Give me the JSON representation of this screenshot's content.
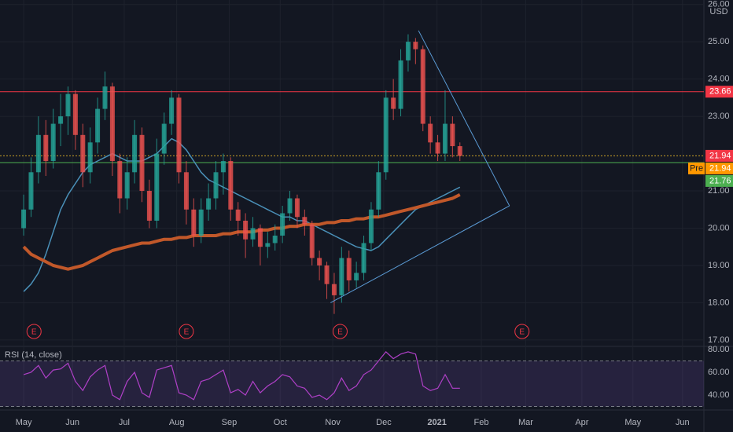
{
  "chart_data": {
    "type": "candlestick",
    "currency": "USD",
    "up_color": "#26a69a",
    "down_color": "#ef5350",
    "xlim": [
      -3.2,
      92
    ],
    "xticks": [
      {
        "value": 0,
        "label": "May"
      },
      {
        "value": 6.6,
        "label": "Jun"
      },
      {
        "value": 13.6,
        "label": "Jul"
      },
      {
        "value": 20.7,
        "label": "Aug"
      },
      {
        "value": 27.8,
        "label": "Sep"
      },
      {
        "value": 34.7,
        "label": "Oct"
      },
      {
        "value": 41.8,
        "label": "Nov"
      },
      {
        "value": 48.7,
        "label": "Dec"
      },
      {
        "value": 55.9,
        "label": "2021"
      },
      {
        "value": 61.9,
        "label": "Feb"
      },
      {
        "value": 67.9,
        "label": "Mar"
      },
      {
        "value": 75.5,
        "label": "Apr"
      },
      {
        "value": 82.4,
        "label": "May"
      },
      {
        "value": 89.1,
        "label": "Jun"
      }
    ],
    "ylim": [
      16.85,
      26.12
    ],
    "yticks": [
      {
        "value": 17,
        "label": "17.00"
      },
      {
        "value": 18,
        "label": "18.00"
      },
      {
        "value": 19,
        "label": "19.00"
      },
      {
        "value": 20,
        "label": "20.00"
      },
      {
        "value": 21,
        "label": "21.00"
      },
      {
        "value": 23,
        "label": "23.00"
      },
      {
        "value": 24,
        "label": "24.00"
      },
      {
        "value": 25,
        "label": "25.00"
      },
      {
        "value": 26,
        "label": "26.00"
      }
    ],
    "open": [
      20.0,
      20.5,
      21.5,
      22.5,
      21.8,
      22.8,
      23.0,
      23.6,
      22.5,
      21.5,
      22.3,
      23.2,
      23.8,
      21.8,
      20.8,
      21.5,
      22.5,
      21.0,
      20.2,
      22.0,
      22.8,
      23.5,
      21.5,
      20.5,
      19.8,
      20.5,
      20.8,
      21.5,
      21.8,
      20.5,
      20.2,
      19.7,
      20.0,
      19.5,
      19.6,
      19.8,
      20.4,
      20.8,
      20.3,
      20.1,
      19.2,
      19.0,
      18.5,
      18.2,
      19.2,
      18.6,
      18.8,
      19.6,
      20.5,
      21.5,
      23.5,
      23.2,
      24.5,
      25.0,
      24.8,
      22.8,
      22.3,
      22.0,
      22.8,
      22.2
    ],
    "high": [
      20.9,
      21.9,
      23.0,
      22.9,
      23.2,
      23.6,
      23.8,
      23.7,
      22.8,
      22.7,
      23.5,
      24.2,
      23.9,
      22.0,
      21.9,
      22.9,
      22.7,
      21.3,
      22.4,
      23.1,
      23.7,
      23.6,
      21.8,
      20.8,
      20.8,
      21.2,
      21.8,
      22.0,
      21.9,
      20.7,
      20.4,
      20.3,
      20.1,
      19.9,
      20.1,
      20.6,
      21.0,
      20.9,
      20.5,
      20.2,
      19.4,
      19.1,
      18.8,
      19.5,
      19.4,
      19.1,
      19.8,
      20.7,
      21.8,
      23.7,
      24.0,
      24.8,
      25.2,
      25.1,
      24.9,
      23.0,
      22.5,
      23.7,
      23.0,
      22.3
    ],
    "low": [
      19.8,
      20.3,
      21.2,
      21.4,
      21.6,
      22.2,
      22.5,
      22.1,
      21.1,
      21.2,
      22.0,
      22.9,
      21.4,
      20.4,
      20.5,
      21.2,
      20.7,
      20.0,
      20.0,
      21.7,
      22.5,
      21.2,
      20.1,
      19.5,
      19.6,
      20.2,
      20.5,
      20.9,
      20.2,
      19.8,
      19.2,
      19.5,
      19.0,
      19.2,
      19.4,
      19.6,
      20.2,
      20.0,
      19.8,
      19.0,
      18.6,
      18.1,
      17.7,
      18.0,
      18.3,
      18.4,
      18.6,
      19.4,
      20.3,
      21.3,
      22.9,
      23.0,
      24.2,
      24.4,
      22.6,
      22.0,
      21.8,
      21.8,
      21.9,
      21.8
    ],
    "close": [
      20.5,
      21.5,
      22.5,
      21.8,
      22.8,
      23.0,
      23.6,
      22.5,
      21.5,
      22.3,
      23.2,
      23.8,
      21.8,
      20.8,
      21.5,
      22.5,
      21.0,
      20.2,
      22.0,
      22.8,
      23.5,
      21.5,
      20.5,
      19.8,
      20.5,
      20.8,
      21.5,
      21.8,
      20.5,
      20.2,
      19.7,
      20.0,
      19.5,
      19.6,
      19.8,
      20.4,
      20.8,
      20.3,
      20.1,
      19.2,
      19.0,
      18.5,
      18.2,
      19.2,
      18.6,
      18.8,
      19.6,
      20.5,
      21.5,
      23.5,
      23.2,
      24.5,
      25.0,
      24.8,
      22.8,
      22.3,
      22.0,
      22.8,
      22.2,
      21.94
    ],
    "series": [
      {
        "color": "#4a90b8",
        "width": 1.5,
        "values": [
          18.3,
          18.5,
          18.8,
          19.3,
          19.9,
          20.5,
          20.9,
          21.2,
          21.5,
          21.7,
          21.8,
          21.9,
          22.0,
          21.9,
          21.8,
          21.8,
          21.8,
          21.9,
          22.0,
          22.2,
          22.4,
          22.3,
          22.1,
          21.8,
          21.5,
          21.3,
          21.2,
          21.1,
          21.0,
          20.9,
          20.8,
          20.7,
          20.6,
          20.5,
          20.4,
          20.3,
          20.3,
          20.2,
          20.2,
          20.1,
          20.0,
          19.9,
          19.8,
          19.7,
          19.6,
          19.5,
          19.45,
          19.4,
          19.5,
          19.7,
          19.9,
          20.1,
          20.3,
          20.5,
          20.6,
          20.7,
          20.8,
          20.9,
          21.0,
          21.1
        ]
      },
      {
        "color": "#c1582a",
        "width": 4,
        "values": [
          19.5,
          19.3,
          19.2,
          19.1,
          19.0,
          18.95,
          18.9,
          18.95,
          19.0,
          19.1,
          19.2,
          19.3,
          19.4,
          19.45,
          19.5,
          19.55,
          19.6,
          19.6,
          19.65,
          19.7,
          19.7,
          19.75,
          19.75,
          19.8,
          19.8,
          19.8,
          19.8,
          19.85,
          19.85,
          19.9,
          19.9,
          19.9,
          19.95,
          19.95,
          20.0,
          20.0,
          20.05,
          20.05,
          20.1,
          20.1,
          20.1,
          20.15,
          20.15,
          20.2,
          20.2,
          20.25,
          20.25,
          20.3,
          20.3,
          20.35,
          20.4,
          20.45,
          20.5,
          20.55,
          20.6,
          20.65,
          20.7,
          20.75,
          20.8,
          20.9
        ]
      }
    ],
    "levels": [
      {
        "value": 23.66,
        "color": "#f23645",
        "style": "solid"
      },
      {
        "value": 21.94,
        "color": "#c9a227",
        "style": "dotted"
      },
      {
        "value": 21.76,
        "color": "#4caf50",
        "style": "solid"
      }
    ],
    "price_labels": [
      {
        "value": 23.66,
        "color": "#f23645"
      },
      {
        "value": 21.94,
        "color": "#f23645"
      },
      {
        "value": 21.94,
        "color": "#ff9800",
        "tag": "Pre"
      },
      {
        "value": 21.76,
        "color": "#4caf50"
      }
    ],
    "trendline_color": "#5b9bd5",
    "trendlines": [
      [
        [
          53.4,
          25.3
        ],
        [
          65.7,
          20.6
        ]
      ],
      [
        [
          41.5,
          18.0
        ],
        [
          65.7,
          20.6
        ]
      ]
    ],
    "earnings_label": "E",
    "earnings": [
      1.4,
      22.0,
      42.8,
      67.4
    ],
    "rsi": {
      "title": "RSI (14, close)",
      "color": "#b040c8",
      "ylim": [
        28.3,
        81.4
      ],
      "yticks": [
        {
          "value": 40,
          "label": "40.00"
        },
        {
          "value": 60,
          "label": "60.00"
        },
        {
          "value": 80,
          "label": "80.00"
        }
      ],
      "bands": [
        70,
        30
      ],
      "values": [
        58,
        60,
        66,
        55,
        62,
        63,
        68,
        52,
        44,
        56,
        62,
        66,
        40,
        36,
        52,
        60,
        42,
        38,
        62,
        64,
        66,
        42,
        40,
        36,
        52,
        54,
        58,
        62,
        42,
        45,
        40,
        52,
        42,
        48,
        52,
        58,
        56,
        48,
        46,
        38,
        40,
        36,
        42,
        55,
        44,
        48,
        58,
        62,
        70,
        78,
        72,
        76,
        78,
        76,
        48,
        44,
        46,
        58,
        46,
        46
      ]
    }
  }
}
